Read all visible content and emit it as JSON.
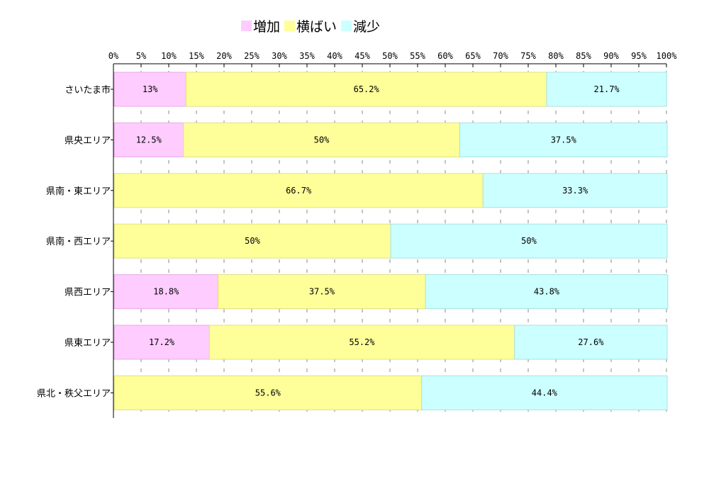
{
  "chart_data": {
    "type": "bar",
    "orientation": "horizontal",
    "stacked": true,
    "percent": true,
    "title": "",
    "xlabel": "",
    "ylabel": "",
    "xlim": [
      0,
      100
    ],
    "x_ticks": [
      "0%",
      "5%",
      "10%",
      "15%",
      "20%",
      "25%",
      "30%",
      "35%",
      "40%",
      "45%",
      "50%",
      "55%",
      "60%",
      "65%",
      "70%",
      "75%",
      "80%",
      "85%",
      "90%",
      "95%",
      "100%"
    ],
    "grid": true,
    "legend_position": "top-center",
    "categories": [
      "さいたま市",
      "県央エリア",
      "県南・東エリア",
      "県南・西エリア",
      "県西エリア",
      "県東エリア",
      "県北・秩父エリア"
    ],
    "series": [
      {
        "name": "増加",
        "color": "#FFCCFF",
        "values": [
          13,
          12.5,
          0,
          0,
          18.8,
          17.2,
          0
        ],
        "labels": [
          "13%",
          "12.5%",
          "",
          "",
          "18.8%",
          "17.2%",
          ""
        ]
      },
      {
        "name": "横ばい",
        "color": "#FFFF99",
        "values": [
          65.2,
          50,
          66.7,
          50,
          37.5,
          55.2,
          55.6
        ],
        "labels": [
          "65.2%",
          "50%",
          "66.7%",
          "50%",
          "37.5%",
          "55.2%",
          "55.6%"
        ]
      },
      {
        "name": "減少",
        "color": "#CCFFFF",
        "values": [
          21.7,
          37.5,
          33.3,
          50,
          43.8,
          27.6,
          44.4
        ],
        "labels": [
          "21.7%",
          "37.5%",
          "33.3%",
          "50%",
          "43.8%",
          "27.6%",
          "44.4%"
        ]
      }
    ]
  }
}
